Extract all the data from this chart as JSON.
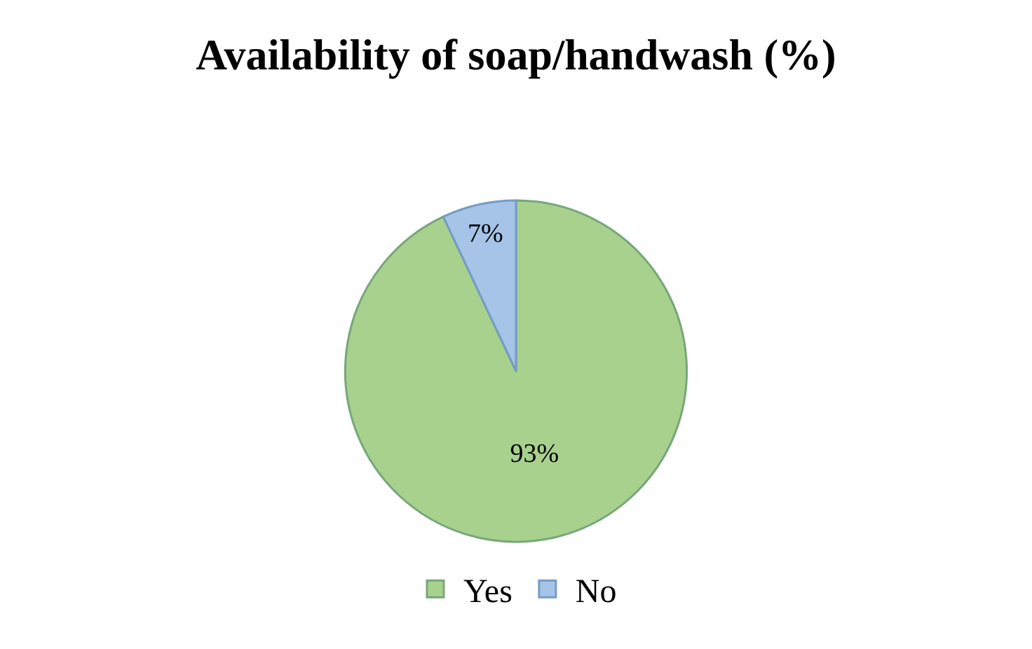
{
  "chart_data": {
    "type": "pie",
    "title": "Availability of soap/handwash (%)",
    "categories": [
      "Yes",
      "No"
    ],
    "values": [
      93,
      7
    ],
    "colors": [
      "#a9d18e",
      "#a6c3e8"
    ],
    "value_labels": [
      "93%",
      "7%"
    ],
    "legend": "bottom"
  }
}
